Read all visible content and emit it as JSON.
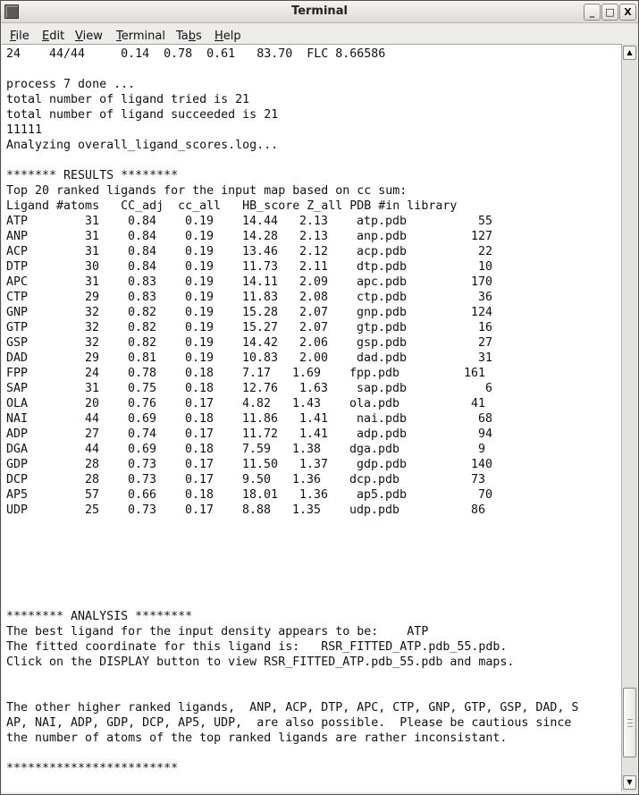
{
  "window": {
    "title": "Terminal"
  },
  "menubar": {
    "items": [
      {
        "label": "File",
        "mnemonic_index": 0
      },
      {
        "label": "Edit",
        "mnemonic_index": 0
      },
      {
        "label": "View",
        "mnemonic_index": 0
      },
      {
        "label": "Terminal",
        "mnemonic_index": 0
      },
      {
        "label": "Tabs",
        "mnemonic_index": 2
      },
      {
        "label": "Help",
        "mnemonic_index": 0
      }
    ]
  },
  "terminal": {
    "pre_lines": [
      "24    44/44     0.14  0.78  0.61   83.70  FLC 8.66586",
      "",
      "process 7 done ...",
      "total number of ligand tried is 21",
      "total number of ligand succeeded is 21",
      "11111",
      "Analyzing overall_ligand_scores.log...",
      "",
      "******* RESULTS ********",
      "Top 20 ranked ligands for the input map based on cc sum:",
      "Ligand #atoms   CC_adj  cc_all   HB_score Z_all PDB #in library"
    ],
    "results": [
      [
        "ATP",
        "31",
        "0.84",
        "0.19",
        "14.44",
        "2.13",
        "atp.pdb",
        "55"
      ],
      [
        "ANP",
        "31",
        "0.84",
        "0.19",
        "14.28",
        "2.13",
        "anp.pdb",
        "127"
      ],
      [
        "ACP",
        "31",
        "0.84",
        "0.19",
        "13.46",
        "2.12",
        "acp.pdb",
        "22"
      ],
      [
        "DTP",
        "30",
        "0.84",
        "0.19",
        "11.73",
        "2.11",
        "dtp.pdb",
        "10"
      ],
      [
        "APC",
        "31",
        "0.83",
        "0.19",
        "14.11",
        "2.09",
        "apc.pdb",
        "170"
      ],
      [
        "CTP",
        "29",
        "0.83",
        "0.19",
        "11.83",
        "2.08",
        "ctp.pdb",
        "36"
      ],
      [
        "GNP",
        "32",
        "0.82",
        "0.19",
        "15.28",
        "2.07",
        "gnp.pdb",
        "124"
      ],
      [
        "GTP",
        "32",
        "0.82",
        "0.19",
        "15.27",
        "2.07",
        "gtp.pdb",
        "16"
      ],
      [
        "GSP",
        "32",
        "0.82",
        "0.19",
        "14.42",
        "2.06",
        "gsp.pdb",
        "27"
      ],
      [
        "DAD",
        "29",
        "0.81",
        "0.19",
        "10.83",
        "2.00",
        "dad.pdb",
        "31"
      ],
      [
        "FPP",
        "24",
        "0.78",
        "0.18",
        "7.17",
        "1.69",
        "fpp.pdb",
        "161"
      ],
      [
        "SAP",
        "31",
        "0.75",
        "0.18",
        "12.76",
        "1.63",
        "sap.pdb",
        "6"
      ],
      [
        "OLA",
        "20",
        "0.76",
        "0.17",
        "4.82",
        "1.43",
        "ola.pdb",
        "41"
      ],
      [
        "NAI",
        "44",
        "0.69",
        "0.18",
        "11.86",
        "1.41",
        "nai.pdb",
        "68"
      ],
      [
        "ADP",
        "27",
        "0.74",
        "0.17",
        "11.72",
        "1.41",
        "adp.pdb",
        "94"
      ],
      [
        "DGA",
        "44",
        "0.69",
        "0.18",
        "7.59",
        "1.38",
        "dga.pdb",
        "9"
      ],
      [
        "GDP",
        "28",
        "0.73",
        "0.17",
        "11.50",
        "1.37",
        "gdp.pdb",
        "140"
      ],
      [
        "DCP",
        "28",
        "0.73",
        "0.17",
        "9.50",
        "1.36",
        "dcp.pdb",
        "73"
      ],
      [
        "AP5",
        "57",
        "0.66",
        "0.18",
        "18.01",
        "1.36",
        "ap5.pdb",
        "70"
      ],
      [
        "UDP",
        "25",
        "0.73",
        "0.17",
        "8.88",
        "1.35",
        "udp.pdb",
        "86"
      ]
    ],
    "post_lines": [
      "",
      "",
      "",
      "",
      "",
      "",
      "******** ANALYSIS ********",
      "The best ligand for the input density appears to be:    ATP",
      "The fitted coordinate for this ligand is:   RSR_FITTED_ATP.pdb_55.pdb.",
      "Click on the DISPLAY button to view RSR_FITTED_ATP.pdb_55.pdb and maps.",
      "",
      "",
      "The other higher ranked ligands,  ANP, ACP, DTP, APC, CTP, GNP, GTP, GSP, DAD, S",
      "AP, NAI, ADP, GDP, DCP, AP5, UDP,  are also possible.  Please be cautious since",
      "the number of atoms of the top ranked ligands are rather inconsistant.",
      "",
      "************************"
    ]
  },
  "scrollbar": {
    "position_fraction": 0.97
  },
  "icons": {
    "app": "terminal-app-icon",
    "minimize": "minimize-icon",
    "maximize": "maximize-icon",
    "close": "close-icon",
    "up": "arrow-up-icon",
    "down": "arrow-down-icon"
  }
}
